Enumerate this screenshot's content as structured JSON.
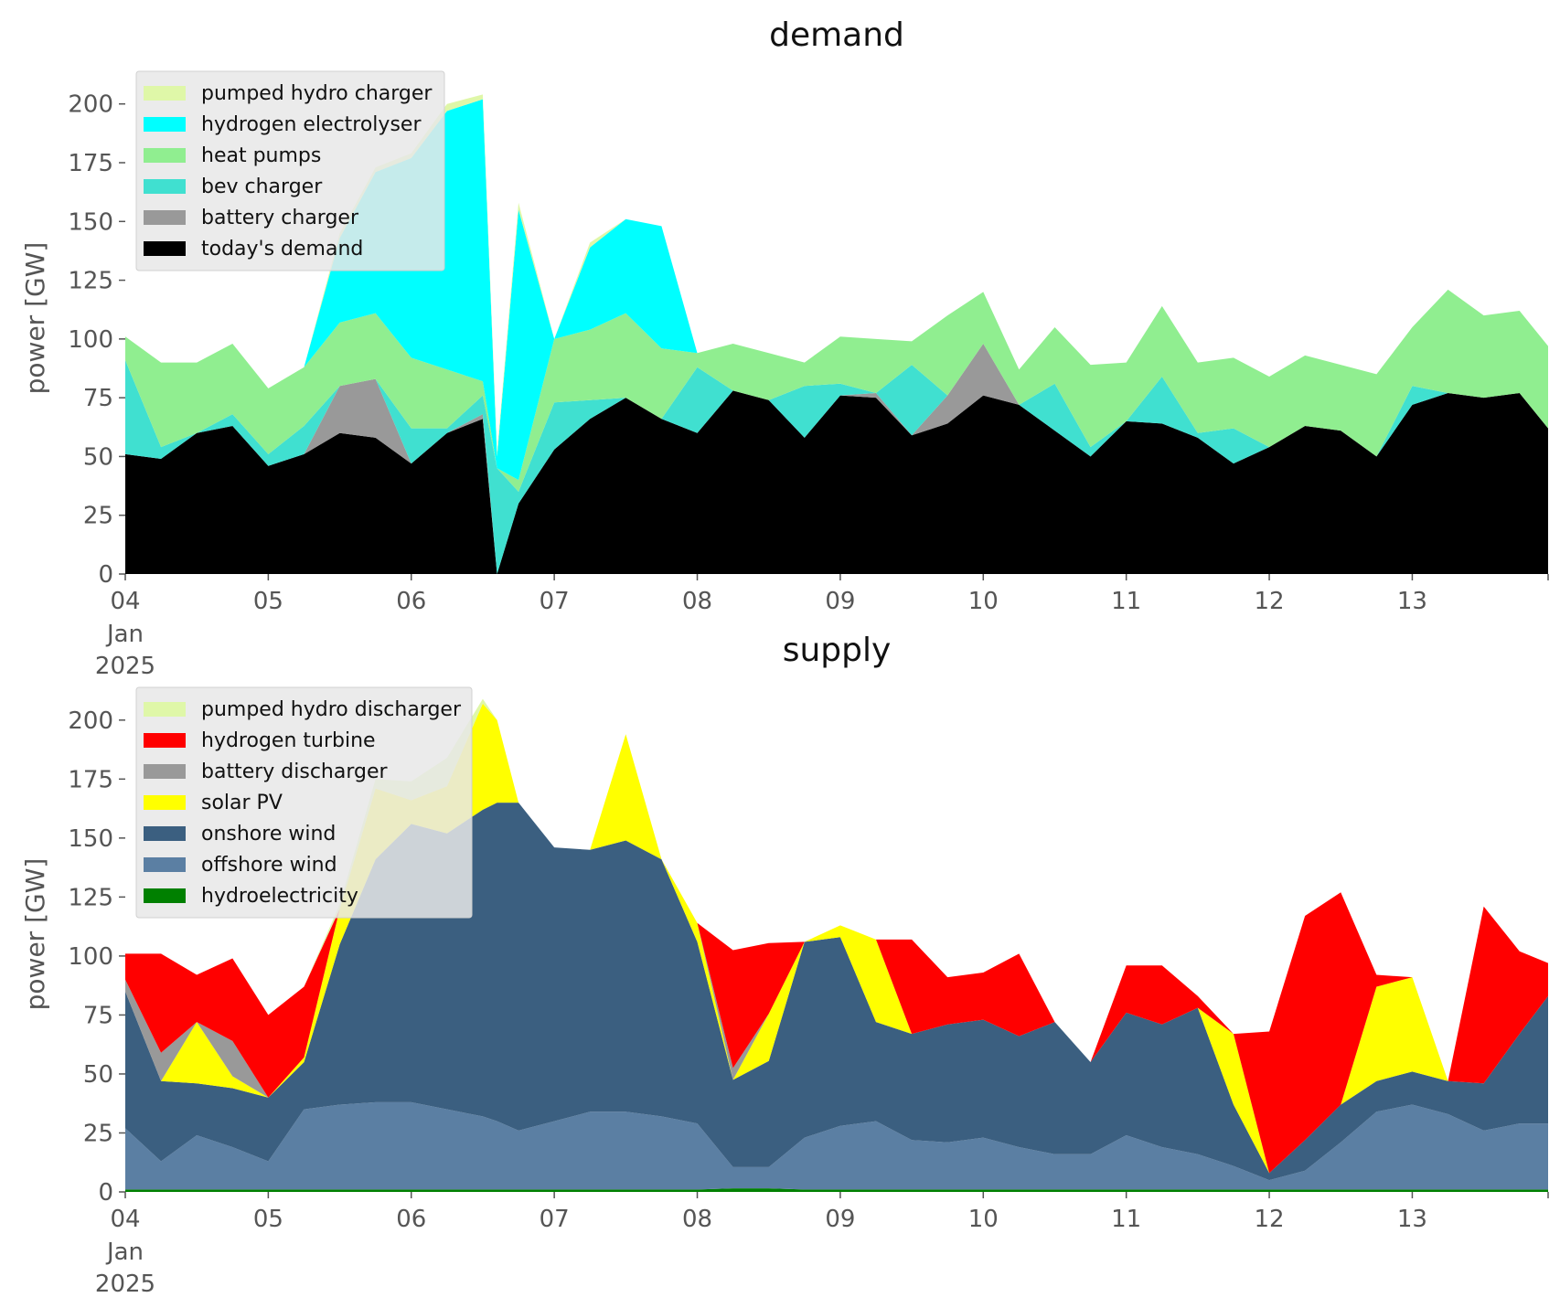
{
  "figure": {
    "x_tick_labels": [
      "04",
      "05",
      "06",
      "07",
      "08",
      "09",
      "10",
      "11",
      "12",
      "13"
    ],
    "x_tick_sub1": "Jan",
    "x_tick_sub2": "2025"
  },
  "chart_data": [
    {
      "type": "area",
      "title": "demand",
      "ylabel": "power [GW]",
      "xlabel": "",
      "x_unit": "days since 2025-01-04 00:00",
      "xlim": [
        0,
        9.95
      ],
      "ylim": [
        0,
        210
      ],
      "y_ticks": [
        0,
        25,
        50,
        75,
        100,
        125,
        150,
        175,
        200
      ],
      "grid": false,
      "legend_position": "top-left",
      "stacked": true,
      "x": [
        0,
        0.25,
        0.5,
        0.75,
        1,
        1.25,
        1.5,
        1.75,
        2,
        2.25,
        2.5,
        2.6,
        2.75,
        3,
        3.25,
        3.5,
        3.75,
        4,
        4.25,
        4.5,
        4.75,
        5,
        5.25,
        5.5,
        5.75,
        6,
        6.25,
        6.5,
        6.75,
        7,
        7.25,
        7.5,
        7.75,
        8,
        8.25,
        8.5,
        8.75,
        9,
        9.25,
        9.5,
        9.75,
        9.95
      ],
      "series": [
        {
          "name": "today's demand",
          "color": "#000000",
          "values": [
            51,
            49,
            60,
            63,
            46,
            51,
            60,
            58,
            47,
            60,
            66,
            0,
            30,
            53,
            66,
            75,
            66,
            60,
            78,
            74,
            58,
            76,
            75,
            59,
            64,
            76,
            72,
            61,
            50,
            65,
            64,
            58,
            47,
            54,
            63,
            61,
            50,
            72,
            77,
            75,
            77,
            62
          ]
        },
        {
          "name": "battery charger",
          "color": "#999999",
          "values": [
            0,
            0,
            0,
            0,
            0,
            0,
            20,
            25,
            0,
            0,
            2,
            0,
            0,
            0,
            0,
            0,
            0,
            0,
            0,
            0,
            0,
            0,
            2,
            0,
            12,
            22,
            0,
            0,
            0,
            0,
            0,
            0,
            0,
            0,
            0,
            0,
            0,
            0,
            0,
            0,
            0,
            0
          ]
        },
        {
          "name": "bev charger",
          "color": "#40e0d0",
          "values": [
            40,
            5,
            0,
            5,
            5,
            12,
            0,
            0,
            15,
            2,
            8,
            45,
            5,
            20,
            8,
            0,
            0,
            28,
            0,
            0,
            22,
            5,
            0,
            30,
            0,
            0,
            0,
            20,
            4,
            0,
            20,
            2,
            15,
            0,
            0,
            0,
            0,
            8,
            0,
            0,
            0,
            0
          ]
        },
        {
          "name": "heat pumps",
          "color": "#90ee90",
          "values": [
            10,
            36,
            30,
            30,
            28,
            25,
            27,
            28,
            30,
            25,
            6,
            0,
            5,
            27,
            30,
            36,
            30,
            6,
            20,
            20,
            10,
            20,
            23,
            10,
            34,
            22,
            15,
            24,
            35,
            25,
            30,
            30,
            30,
            30,
            30,
            28,
            35,
            25,
            44,
            35,
            35,
            35
          ]
        },
        {
          "name": "hydrogen electrolyser",
          "color": "#00ffff",
          "values": [
            0,
            0,
            0,
            0,
            0,
            0,
            36,
            60,
            85,
            110,
            120,
            5,
            115,
            0,
            35,
            40,
            52,
            0,
            0,
            0,
            0,
            0,
            0,
            0,
            0,
            0,
            0,
            0,
            0,
            0,
            0,
            0,
            0,
            0,
            0,
            0,
            0,
            0,
            0,
            0,
            0,
            0
          ]
        },
        {
          "name": "pumped hydro charger",
          "color": "#dff7a8",
          "values": [
            0,
            0,
            0,
            0,
            0,
            0,
            2,
            2,
            2,
            3,
            2,
            2,
            3,
            0,
            2,
            0,
            0,
            0,
            0,
            0,
            0,
            0,
            0,
            0,
            0,
            0,
            0,
            0,
            0,
            0,
            0,
            0,
            0,
            0,
            0,
            0,
            0,
            0,
            0,
            0,
            0,
            0
          ]
        }
      ]
    },
    {
      "type": "area",
      "title": "supply",
      "ylabel": "power [GW]",
      "xlabel": "",
      "x_unit": "days since 2025-01-04 00:00",
      "xlim": [
        0,
        9.95
      ],
      "ylim": [
        0,
        210
      ],
      "y_ticks": [
        0,
        25,
        50,
        75,
        100,
        125,
        150,
        175,
        200
      ],
      "grid": false,
      "legend_position": "top-left",
      "stacked": true,
      "x": [
        0,
        0.25,
        0.5,
        0.75,
        1,
        1.25,
        1.5,
        1.75,
        2,
        2.25,
        2.5,
        2.6,
        2.75,
        3,
        3.25,
        3.5,
        3.75,
        4,
        4.25,
        4.5,
        4.75,
        5,
        5.25,
        5.5,
        5.75,
        6,
        6.25,
        6.5,
        6.75,
        7,
        7.25,
        7.5,
        7.75,
        8,
        8.25,
        8.5,
        8.75,
        9,
        9.25,
        9.5,
        9.75,
        9.95
      ],
      "series": [
        {
          "name": "hydroelectricity",
          "color": "#008000",
          "values": [
            1,
            1,
            1,
            1,
            1,
            1,
            1,
            1,
            1,
            1,
            1,
            1,
            1,
            1,
            1,
            1,
            1,
            1,
            1.5,
            1.5,
            1,
            1,
            1,
            1,
            1,
            1,
            1,
            1,
            1,
            1,
            1,
            1,
            1,
            1,
            1,
            1,
            1,
            1,
            1,
            1,
            1,
            1
          ]
        },
        {
          "name": "offshore wind",
          "color": "#5b7fa3",
          "values": [
            26,
            12,
            23,
            18,
            12,
            34,
            36,
            37,
            37,
            34,
            31,
            29,
            25,
            29,
            33,
            33,
            31,
            28,
            9,
            9,
            22,
            27,
            29,
            21,
            20,
            22,
            18,
            15,
            15,
            23,
            18,
            15,
            10,
            4,
            8,
            20,
            33,
            36,
            32,
            25,
            28,
            28
          ]
        },
        {
          "name": "onshore wind",
          "color": "#3b5f80",
          "values": [
            58,
            34,
            22,
            25,
            27,
            20,
            68,
            103,
            118,
            117,
            130,
            135,
            139,
            116,
            111,
            115,
            109,
            77,
            37,
            45,
            83,
            80,
            42,
            45,
            50,
            50,
            47,
            56,
            39,
            52,
            52,
            62,
            26,
            3,
            13,
            16,
            13,
            14,
            14,
            20,
            38,
            54
          ]
        },
        {
          "name": "solar PV",
          "color": "#ffff00",
          "values": [
            0,
            0,
            26,
            5,
            0,
            2,
            15,
            30,
            10,
            20,
            45,
            35,
            0,
            0,
            0,
            45,
            0,
            8,
            0,
            20,
            0,
            5,
            35,
            0,
            0,
            0,
            0,
            0,
            0,
            0,
            0,
            0,
            30,
            0,
            0,
            0,
            40,
            40,
            0,
            0,
            0,
            0
          ]
        },
        {
          "name": "battery discharger",
          "color": "#999999",
          "values": [
            5,
            12,
            0,
            15,
            0,
            0,
            0,
            0,
            0,
            0,
            0,
            0,
            0,
            0,
            0,
            0,
            0,
            0,
            5,
            0,
            0,
            0,
            0,
            0,
            0,
            0,
            0,
            0,
            0,
            0,
            0,
            0,
            0,
            0,
            0,
            0,
            0,
            0,
            0,
            0,
            0,
            0
          ]
        },
        {
          "name": "hydrogen turbine",
          "color": "#ff0000",
          "values": [
            11,
            42,
            20,
            35,
            35,
            30,
            0,
            0,
            0,
            0,
            0,
            0,
            0,
            0,
            0,
            0,
            0,
            0,
            50,
            30,
            0,
            0,
            0,
            40,
            20,
            20,
            35,
            0,
            0,
            20,
            25,
            5,
            0,
            60,
            95,
            90,
            5,
            0,
            0,
            75,
            35,
            14
          ]
        },
        {
          "name": "pumped hydro discharger",
          "color": "#dff7a8",
          "values": [
            0,
            0,
            0,
            0,
            0,
            0,
            2,
            4,
            8,
            12,
            2,
            0,
            0,
            0,
            0,
            0,
            0,
            0,
            0,
            0,
            0,
            0,
            0,
            0,
            0,
            0,
            0,
            0,
            0,
            0,
            0,
            0,
            0,
            0,
            0,
            0,
            0,
            0,
            0,
            0,
            0,
            0
          ]
        }
      ]
    }
  ]
}
